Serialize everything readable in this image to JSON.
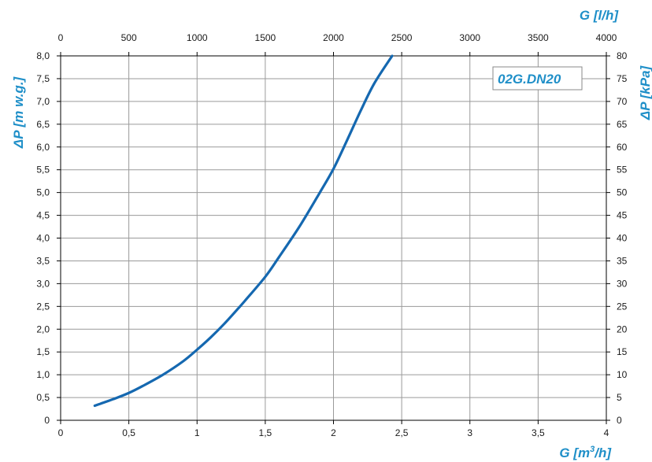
{
  "chart_data": {
    "type": "line",
    "series": [
      {
        "name": "02G.DN20",
        "x": [
          0.25,
          0.4,
          0.5,
          0.6,
          0.75,
          0.9,
          1.0,
          1.1,
          1.2,
          1.3,
          1.35,
          1.5,
          1.6,
          1.75,
          1.9,
          2.0,
          2.1,
          2.2,
          2.3,
          2.43
        ],
        "y": [
          0.32,
          0.48,
          0.6,
          0.75,
          1.0,
          1.3,
          1.55,
          1.82,
          2.12,
          2.45,
          2.62,
          3.15,
          3.58,
          4.25,
          5.0,
          5.52,
          6.15,
          6.8,
          7.4,
          8.0
        ]
      }
    ],
    "x_bottom": {
      "label_main": "G [m",
      "label_sup": "3",
      "label_end": "/h]",
      "min": 0,
      "max": 4,
      "ticks": [
        0,
        0.5,
        1,
        1.5,
        2,
        2.5,
        3,
        3.5,
        4
      ],
      "tick_labels": [
        "0",
        "0,5",
        "1",
        "1,5",
        "2",
        "2,5",
        "3",
        "3,5",
        "4"
      ]
    },
    "x_top": {
      "label": "G [l/h]",
      "min": 0,
      "max": 4000,
      "ticks": [
        0,
        500,
        1000,
        1500,
        2000,
        2500,
        3000,
        3500,
        4000
      ],
      "tick_labels": [
        "0",
        "500",
        "1000",
        "1500",
        "2000",
        "2500",
        "3000",
        "3500",
        "4000"
      ]
    },
    "y_left": {
      "label": "ΔP [m w.g.]",
      "min": 0,
      "max": 8,
      "ticks": [
        0,
        0.5,
        1,
        1.5,
        2,
        2.5,
        3,
        3.5,
        4,
        4.5,
        5,
        5.5,
        6,
        6.5,
        7,
        7.5,
        8
      ],
      "tick_labels": [
        "0",
        "0,5",
        "1,0",
        "1,5",
        "2,0",
        "2,5",
        "3,0",
        "3,5",
        "4,0",
        "4,5",
        "5,0",
        "5,5",
        "6,0",
        "6,5",
        "7,0",
        "7,5",
        "8,0"
      ]
    },
    "y_right": {
      "label": "ΔP [kPa]",
      "min": 0,
      "max": 80,
      "ticks": [
        0,
        5,
        10,
        15,
        20,
        25,
        30,
        35,
        40,
        45,
        50,
        55,
        60,
        65,
        70,
        75,
        80
      ],
      "tick_labels": [
        "0",
        "5",
        "10",
        "15",
        "20",
        "25",
        "30",
        "35",
        "40",
        "45",
        "50",
        "55",
        "60",
        "65",
        "70",
        "75",
        "80"
      ]
    },
    "grid": true,
    "colors": {
      "series": "#1568b0",
      "title": "#1f8fc8",
      "grid": "#9a9a9a",
      "box_border": "#8a8a8a"
    }
  }
}
